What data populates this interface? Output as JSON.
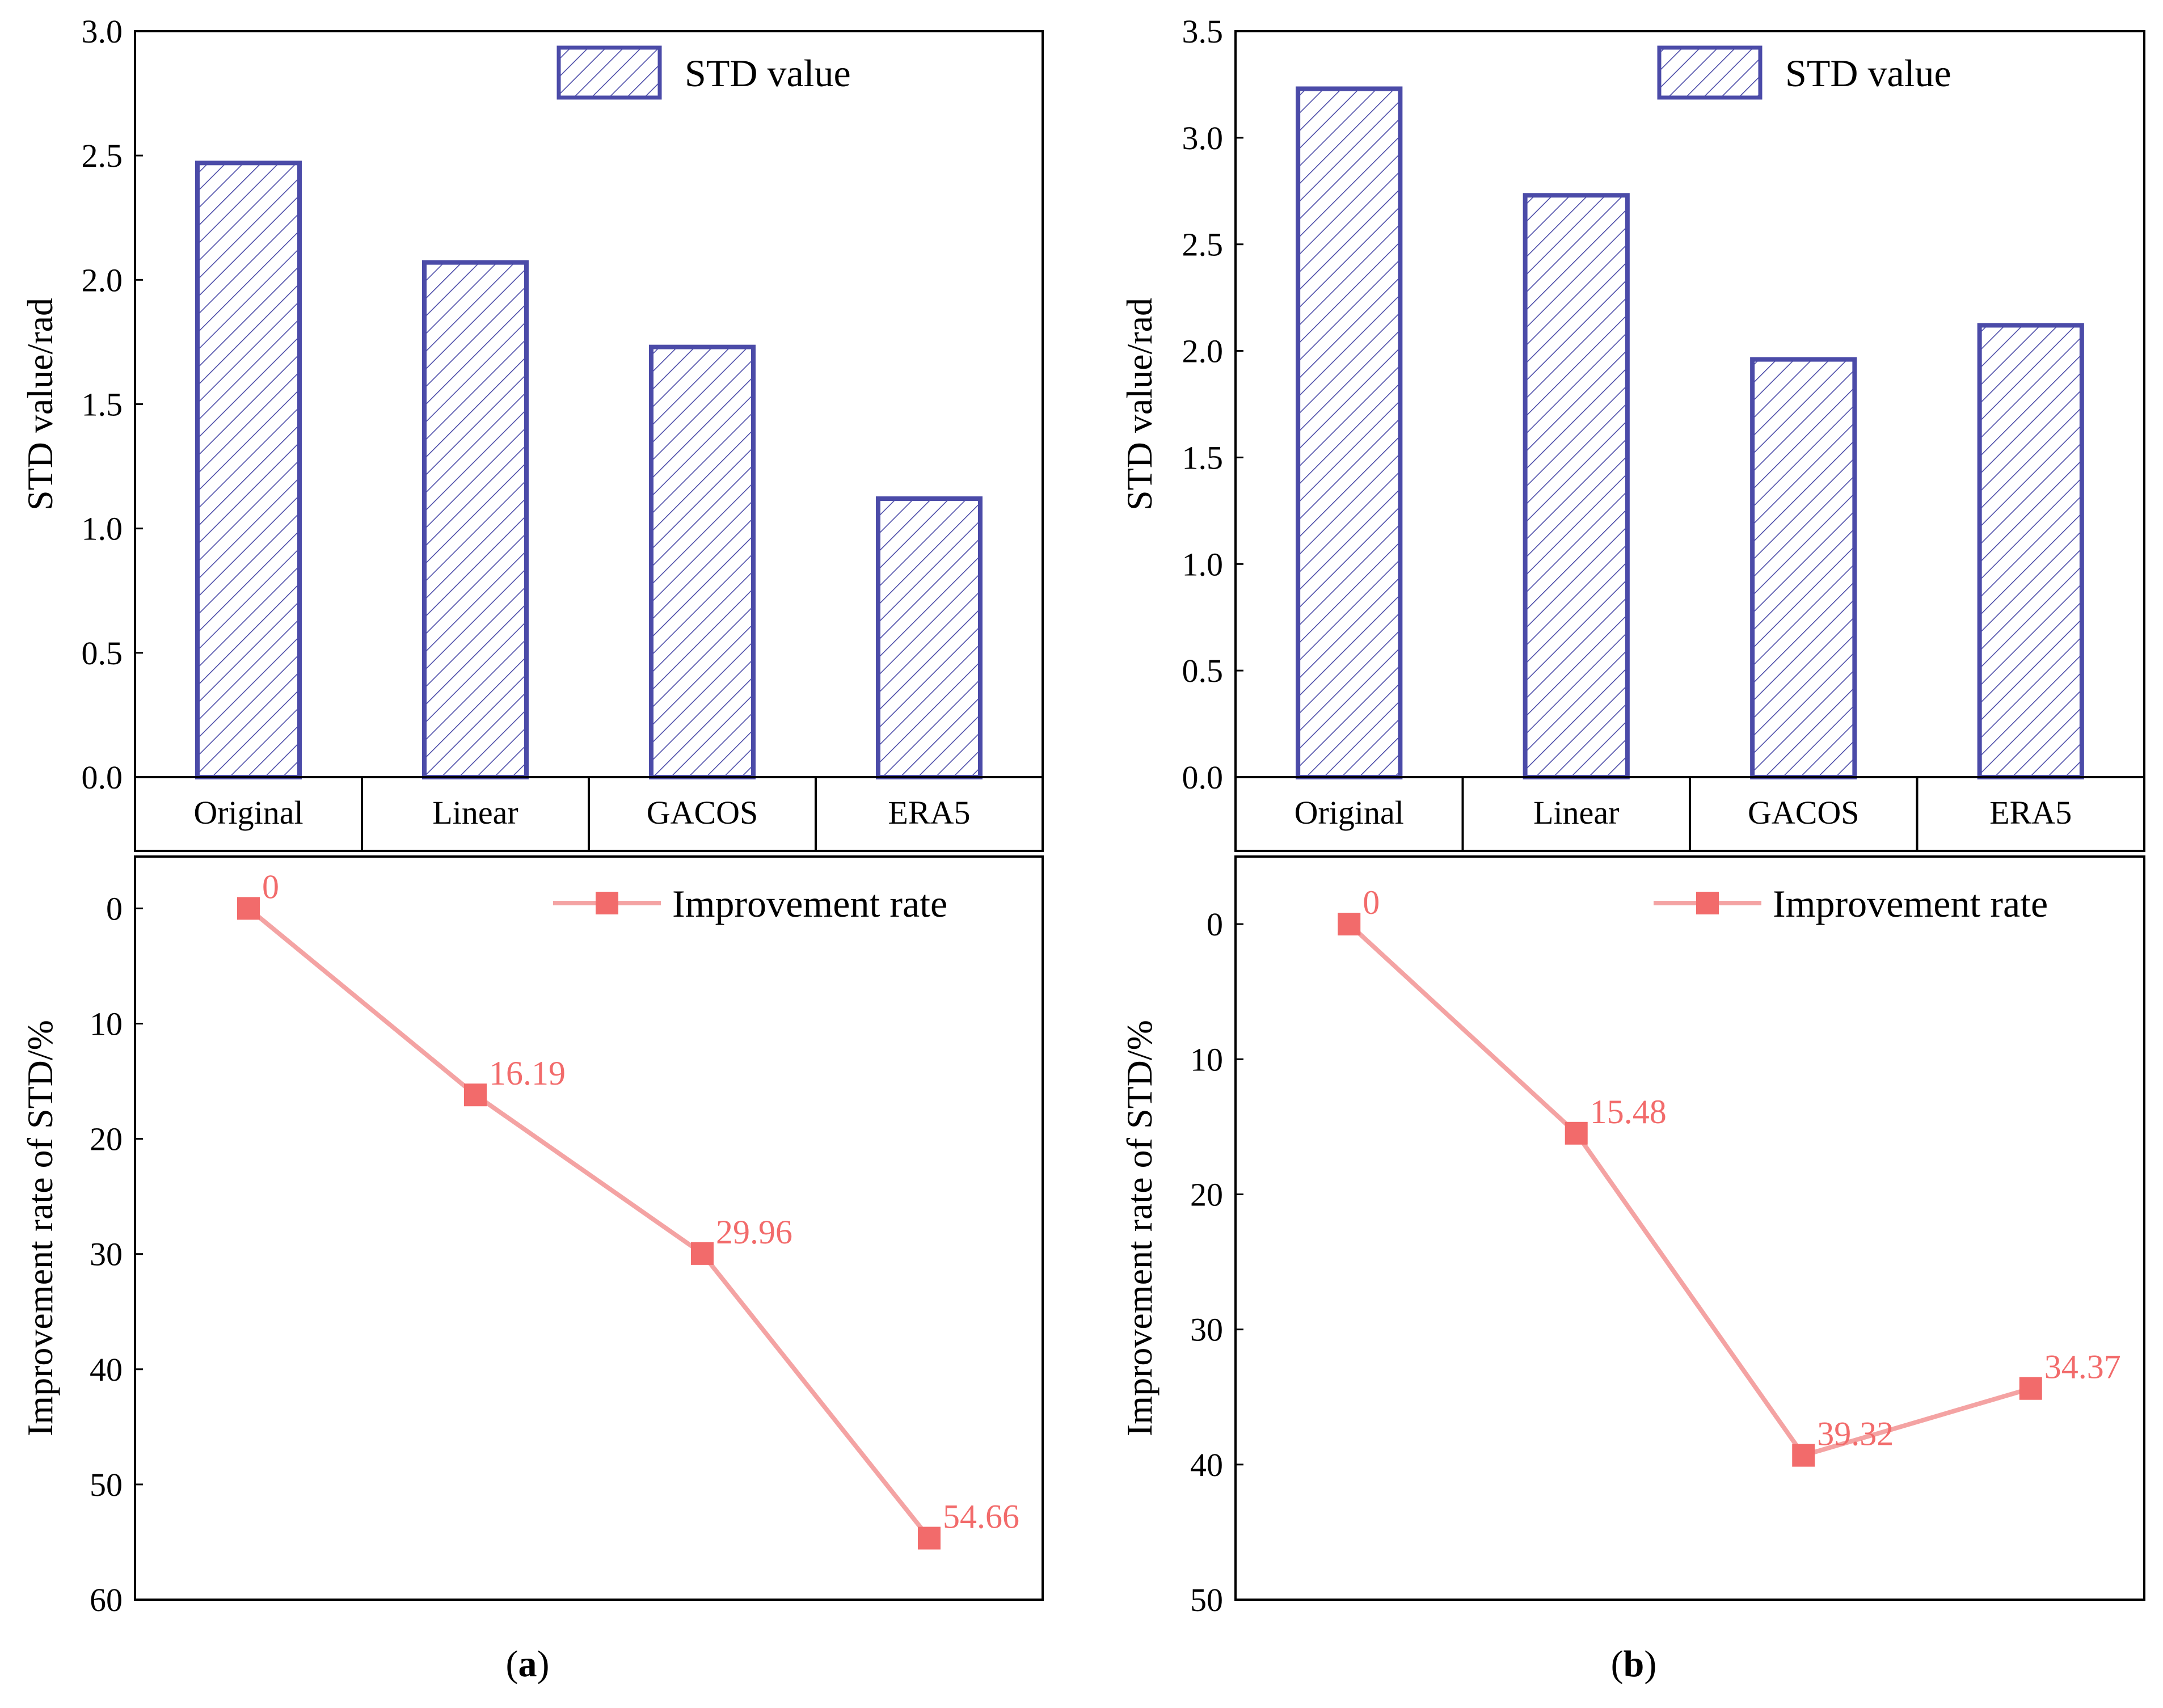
{
  "chart_data": [
    {
      "panel": "a",
      "panel_label": "a",
      "bar_chart": {
        "type": "bar",
        "categories": [
          "Original",
          "Linear",
          "GACOS",
          "ERA5"
        ],
        "series": [
          {
            "name": "STD value",
            "values": [
              2.47,
              2.07,
              1.73,
              1.12
            ]
          }
        ],
        "ylabel": "STD value/rad",
        "ylim": [
          0,
          3.0
        ],
        "yticks": [
          "0.0",
          "0.5",
          "1.0",
          "1.5",
          "2.0",
          "2.5",
          "3.0"
        ],
        "legend": "top-right"
      },
      "line_chart": {
        "type": "line",
        "categories": [
          "Original",
          "Linear",
          "GACOS",
          "ERA5"
        ],
        "series": [
          {
            "name": "Improvement rate",
            "values": [
              0,
              16.19,
              29.96,
              54.66
            ]
          }
        ],
        "data_labels": [
          "0",
          "16.19",
          "29.96",
          "54.66"
        ],
        "ylabel": "Improvement rate of STD/%",
        "ylim": [
          60,
          -4.5
        ],
        "y_inverted": true,
        "yticks": [
          "0",
          "10",
          "20",
          "30",
          "40",
          "50",
          "60"
        ],
        "legend": "top-right"
      },
      "colors": {
        "bar_stroke": "#4b4ba8",
        "line": "#f4a3a3",
        "marker": "#f26b6b",
        "label": "#f26b6b"
      }
    },
    {
      "panel": "b",
      "panel_label": "b",
      "bar_chart": {
        "type": "bar",
        "categories": [
          "Original",
          "Linear",
          "GACOS",
          "ERA5"
        ],
        "series": [
          {
            "name": "STD value",
            "values": [
              3.23,
              2.73,
              1.96,
              2.12
            ]
          }
        ],
        "ylabel": "STD value/rad",
        "ylim": [
          0,
          3.5
        ],
        "yticks": [
          "0.0",
          "0.5",
          "1.0",
          "1.5",
          "2.0",
          "2.5",
          "3.0",
          "3.5"
        ],
        "legend": "top-right"
      },
      "line_chart": {
        "type": "line",
        "categories": [
          "Original",
          "Linear",
          "GACOS",
          "ERA5"
        ],
        "series": [
          {
            "name": "Improvement rate",
            "values": [
              0,
              15.48,
              39.32,
              34.37
            ]
          }
        ],
        "data_labels": [
          "0",
          "15.48",
          "39.32",
          "34.37"
        ],
        "ylabel": "Improvement rate of STD/%",
        "ylim": [
          50,
          -5
        ],
        "y_inverted": true,
        "yticks": [
          "0",
          "10",
          "20",
          "30",
          "40",
          "50"
        ],
        "legend": "top-right"
      },
      "colors": {
        "bar_stroke": "#4b4ba8",
        "line": "#f4a3a3",
        "marker": "#f26b6b",
        "label": "#f26b6b"
      }
    }
  ]
}
